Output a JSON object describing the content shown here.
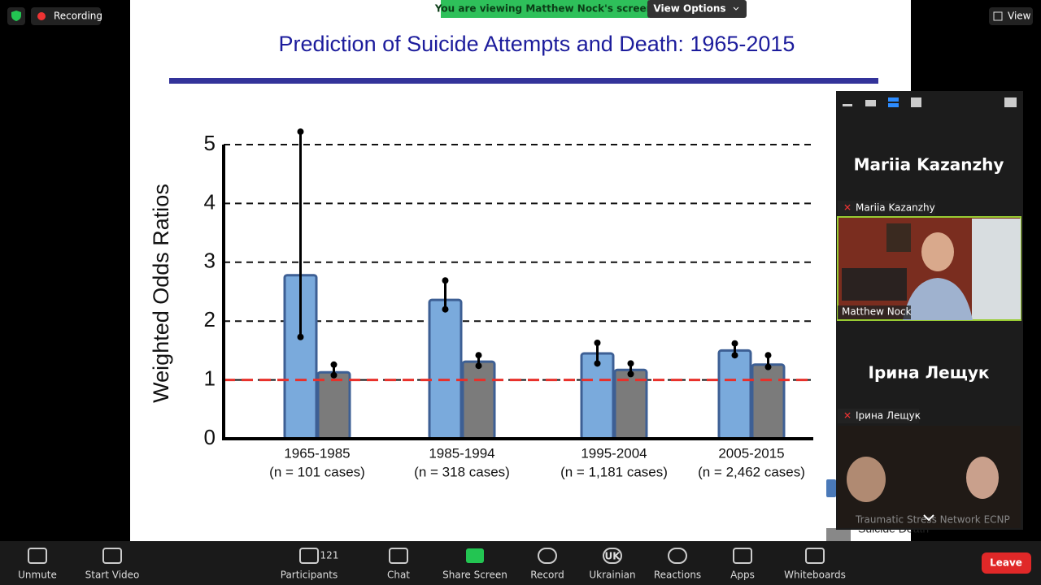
{
  "zoom": {
    "recording": "Recording",
    "banner": "You are viewing Matthew Nock's screen",
    "view_options": "View Options",
    "view": "View"
  },
  "slide": {
    "title": "Prediction of Suicide Attempts and Death:  1965-2015",
    "legend_fragment": "Suicide Death",
    "chart": {
      "type": "bar",
      "ylabel": "Weighted Odds Ratios",
      "ylim": [
        0,
        5
      ],
      "yticks": [
        0,
        1,
        2,
        3,
        4,
        5
      ],
      "grid": true,
      "reference_line": 1,
      "categories": [
        "1965-1985",
        "1985-1994",
        "1995-2004",
        "2005-2015"
      ],
      "case_labels": [
        "(n = 101 cases)",
        "(n = 318 cases)",
        "(n = 1,181 cases)",
        "(n = 2,462 cases)"
      ],
      "series": [
        {
          "color": "#7aaadc",
          "values": [
            2.78,
            2.36,
            1.45,
            1.5
          ],
          "ci_low": [
            1.73,
            2.2,
            1.28,
            1.42
          ],
          "ci_high": [
            5.22,
            2.69,
            1.63,
            1.62
          ]
        },
        {
          "color": "#7b7b7b",
          "values": [
            1.13,
            1.31,
            1.17,
            1.26
          ],
          "ci_low": [
            1.08,
            1.24,
            1.1,
            1.22
          ],
          "ci_high": [
            1.26,
            1.42,
            1.28,
            1.42
          ]
        }
      ]
    }
  },
  "panel": {
    "tiles": [
      {
        "big_name": "Mariia Kazanzhy",
        "label": "Mariia Kazanzhy"
      },
      {
        "label": "Matthew Nock"
      },
      {
        "big_name": "Ірина Лещук",
        "label": "Ірина Лещук"
      },
      {
        "label": "Traumatic Stress Network ECNP"
      }
    ]
  },
  "toolbar": {
    "unmute": "Unmute",
    "start_video": "Start Video",
    "participant_count": 121,
    "participants": "Participants",
    "chat": "Chat",
    "share_screen": "Share Screen",
    "record": "Record",
    "language_code": "UK",
    "language": "Ukrainian",
    "reactions": "Reactions",
    "apps": "Apps",
    "whiteboards": "Whiteboards",
    "leave": "Leave"
  }
}
